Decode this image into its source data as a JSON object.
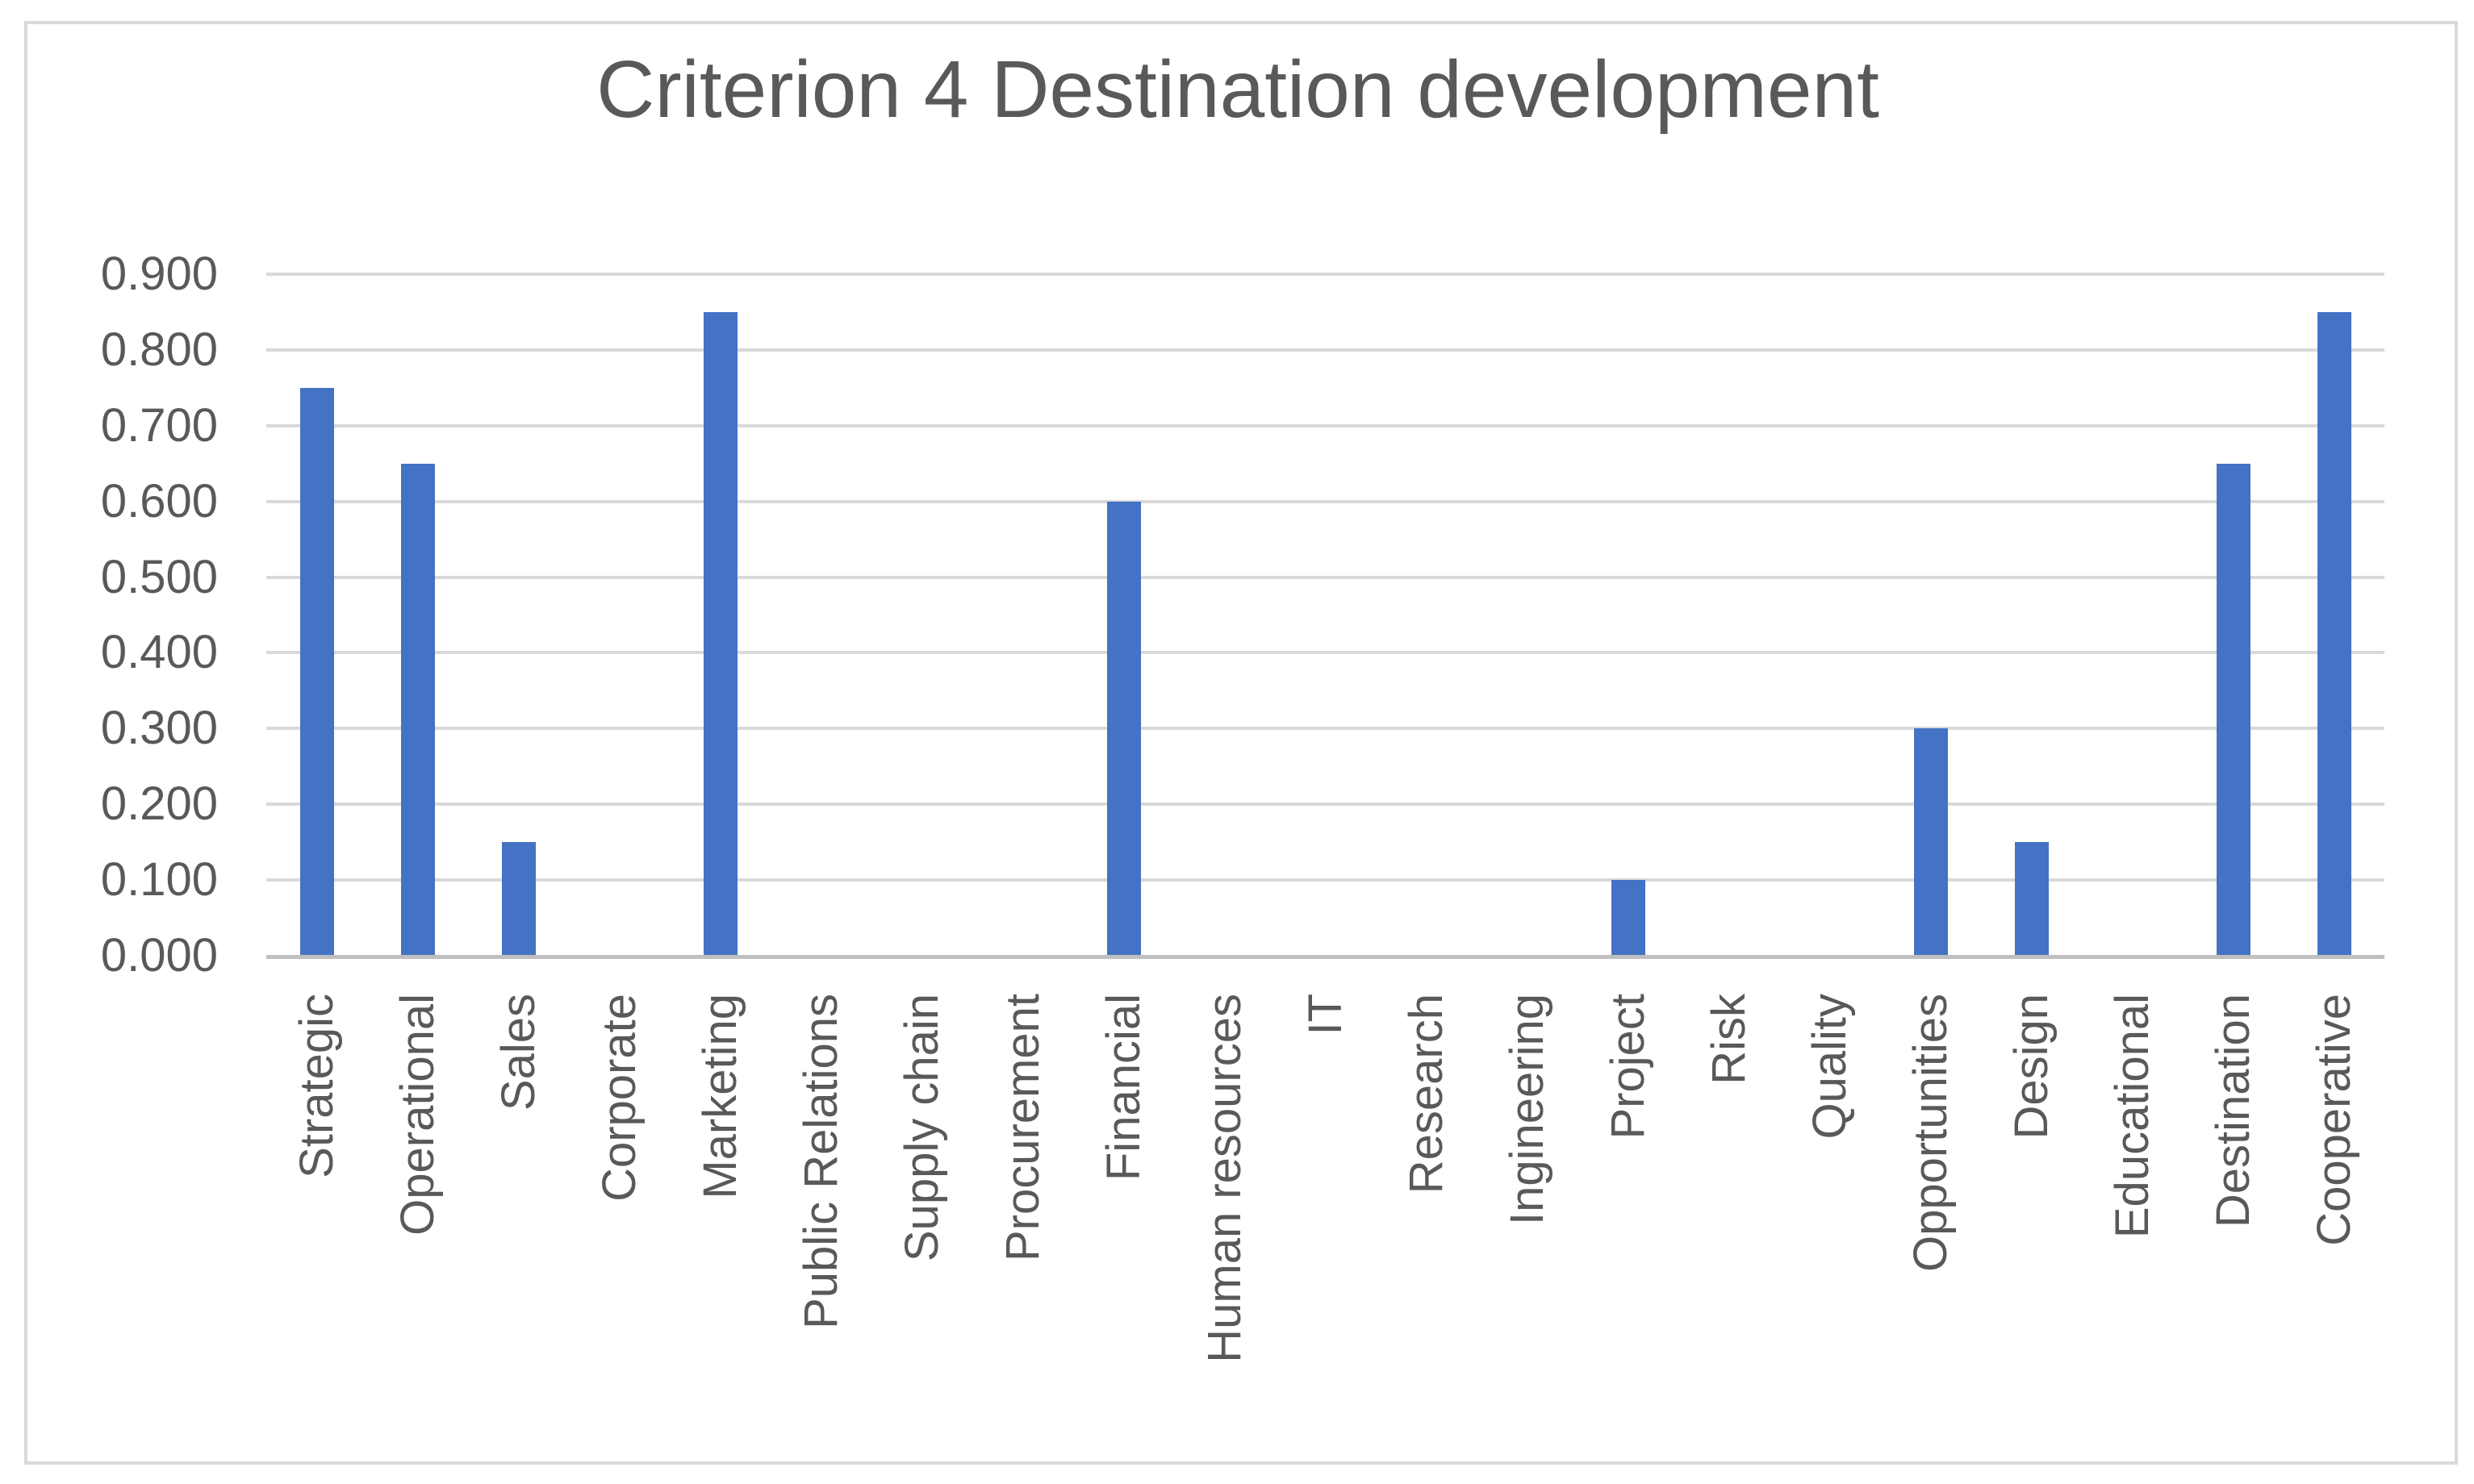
{
  "chart_data": {
    "type": "bar",
    "title": "Criterion 4 Destination development",
    "categories": [
      "Strategic",
      "Operational",
      "Sales",
      "Corporate",
      "Marketing",
      "Public Relations",
      "Supply chain",
      "Procurement",
      "Financial",
      "Human resources",
      "IT",
      "Research",
      "Ingineering",
      "Project",
      "Risk",
      "Quality",
      "Opportunities",
      "Design",
      "Educational",
      "Destination",
      "Cooperative"
    ],
    "values": [
      0.75,
      0.65,
      0.15,
      0,
      0.85,
      0,
      0,
      0,
      0.6,
      0,
      0,
      0,
      0,
      0.1,
      0,
      0,
      0.3,
      0.15,
      0,
      0.65,
      0.85
    ],
    "ytick_labels": [
      "0.000",
      "0.100",
      "0.200",
      "0.300",
      "0.400",
      "0.500",
      "0.600",
      "0.700",
      "0.800",
      "0.900"
    ],
    "ylim": [
      0,
      0.9
    ],
    "xlabel": "",
    "ylabel": "",
    "grid": true,
    "legend": false,
    "bar_color": "#4472C4",
    "gridline_color": "#D9D9D9",
    "axis_line_color": "#BFBFBF",
    "text_color": "#595959",
    "frame_border_color": "#D9D9D9",
    "background_color": "#FFFFFF"
  }
}
